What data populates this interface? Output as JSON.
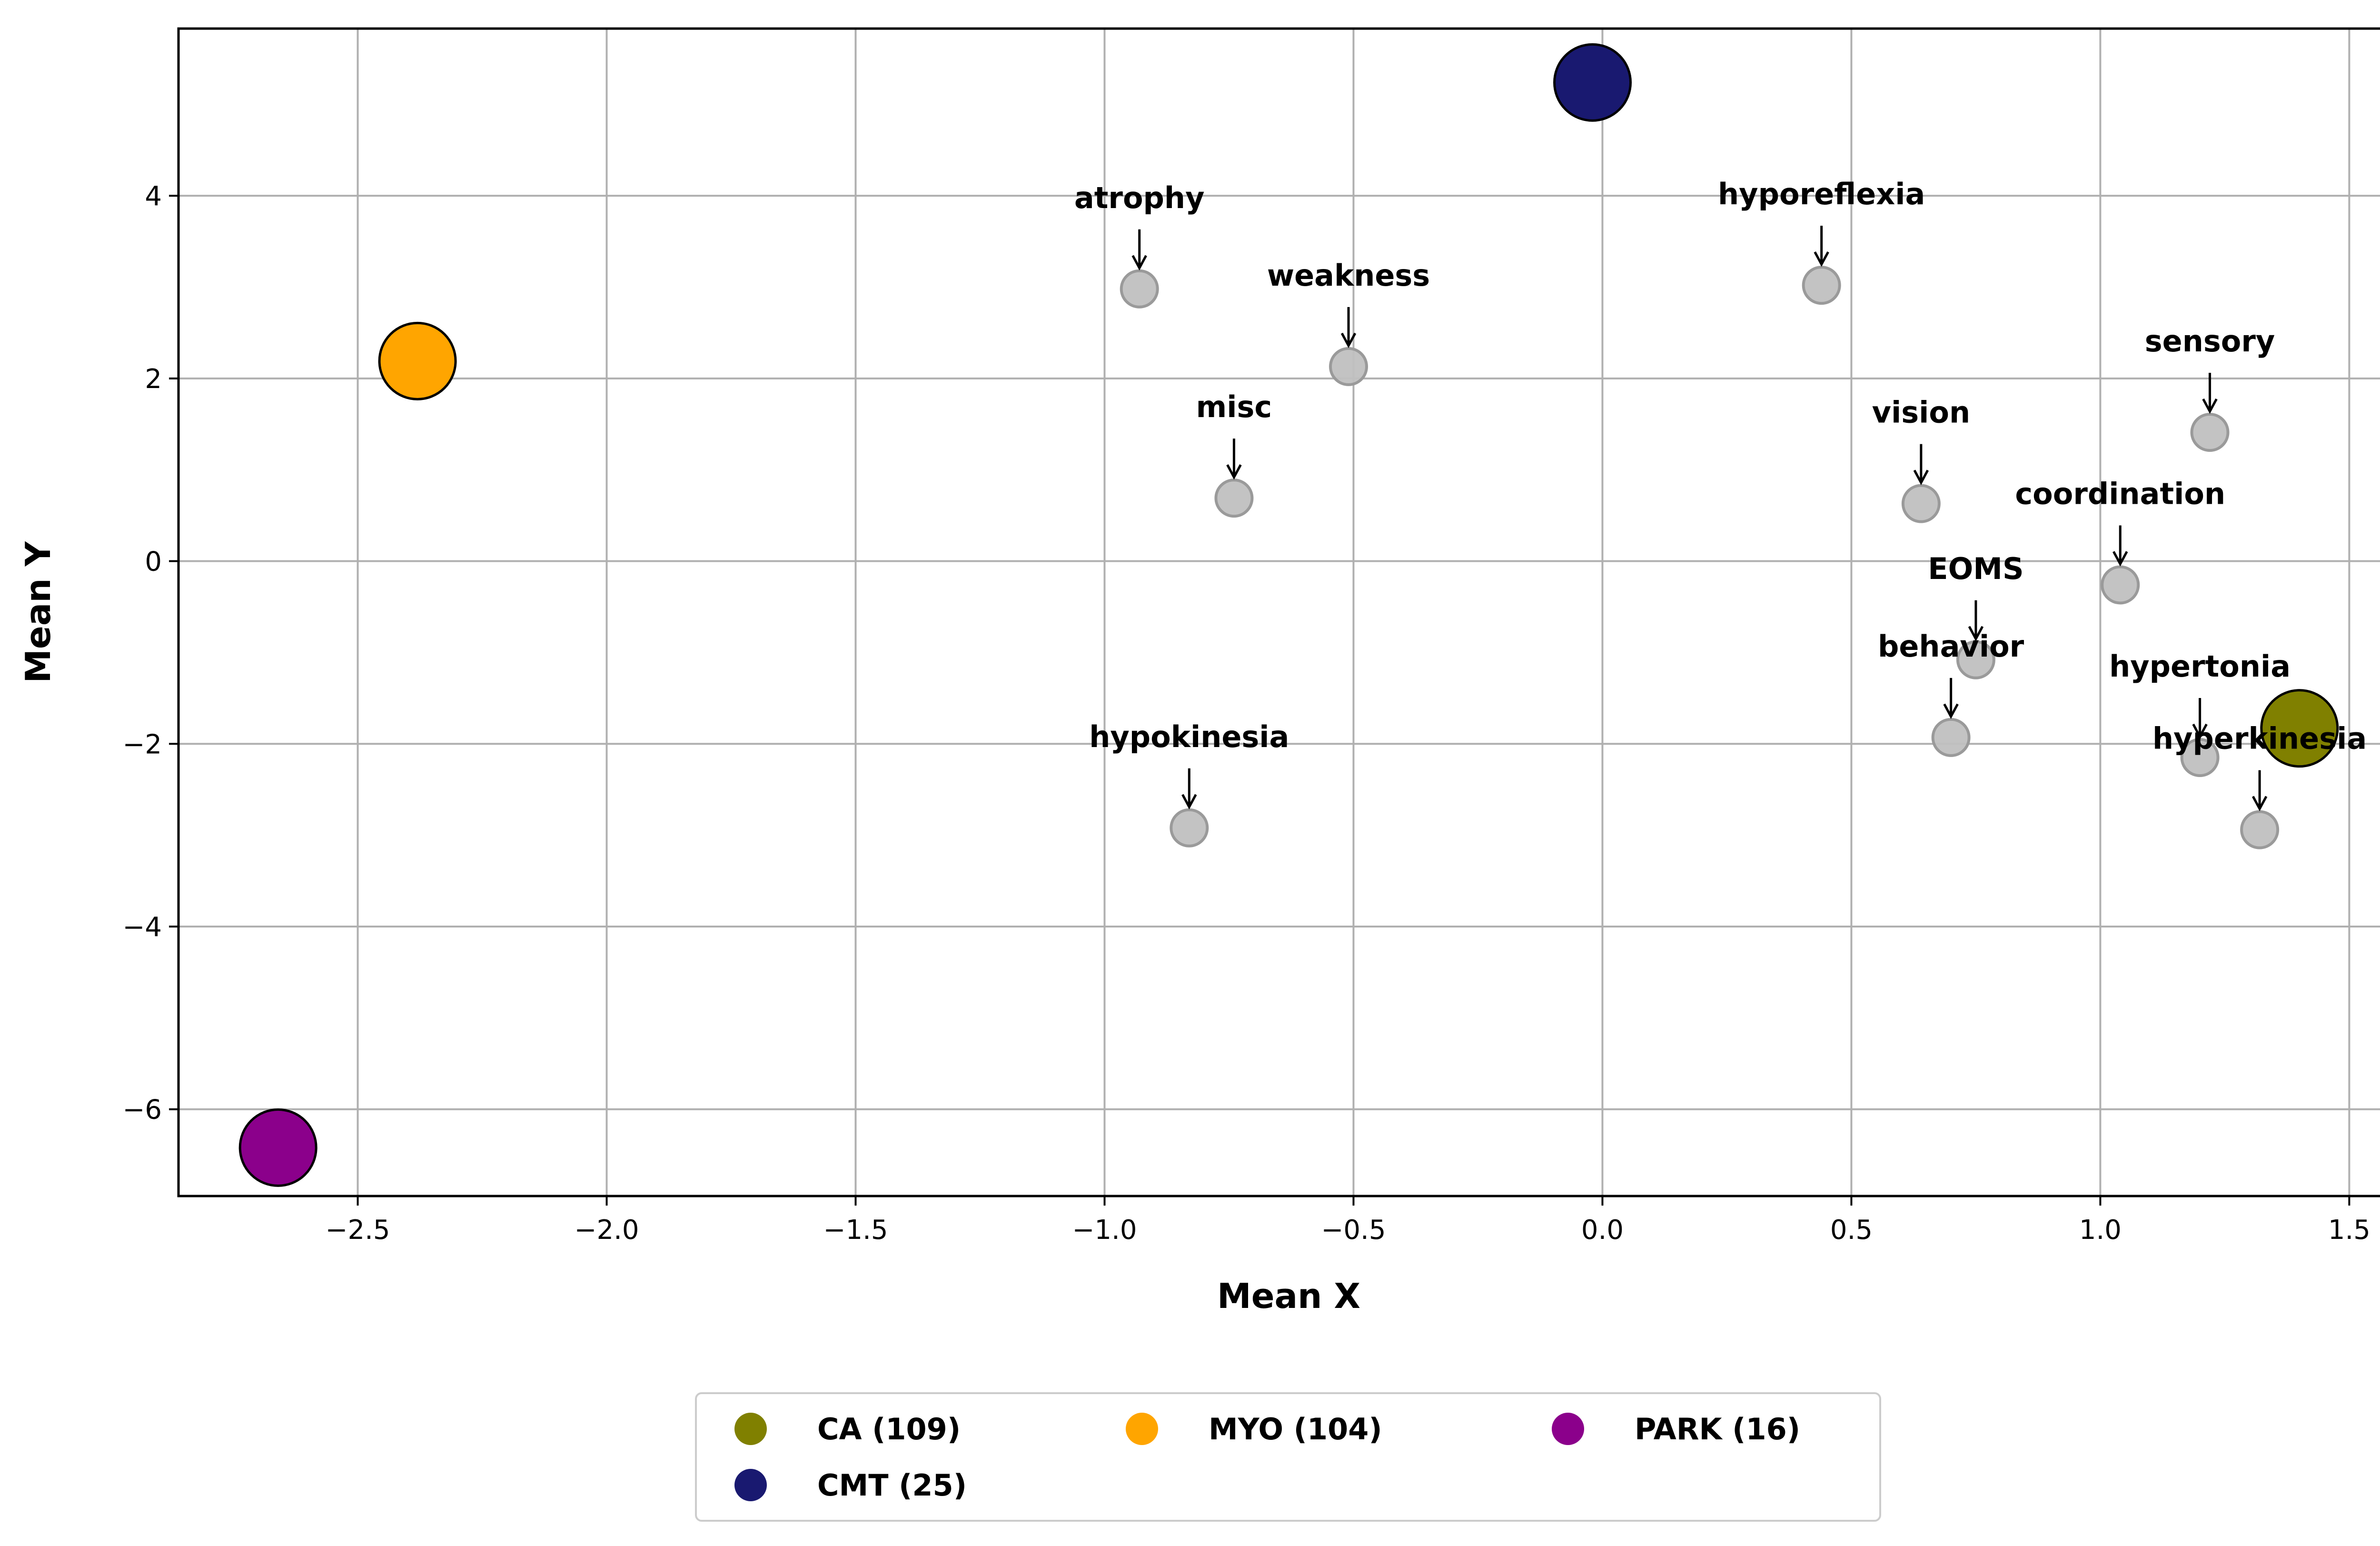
{
  "chart_data": {
    "type": "scatter",
    "xlabel": "Mean X",
    "ylabel": "Mean Y",
    "xlim": [
      -2.86,
      1.6
    ],
    "ylim": [
      -6.95,
      5.83
    ],
    "grid": true,
    "x_ticks": [
      -2.5,
      -2.0,
      -1.5,
      -1.0,
      -0.5,
      0.0,
      0.5,
      1.0,
      1.5
    ],
    "x_tick_labels": [
      "−2.5",
      "−2.0",
      "−1.5",
      "−1.0",
      "−0.5",
      "0.0",
      "0.5",
      "1.0",
      "1.5"
    ],
    "y_ticks": [
      4,
      2,
      0,
      -2,
      -4,
      -6
    ],
    "y_tick_labels": [
      "4",
      "2",
      "0",
      "−2",
      "−4",
      "−6"
    ],
    "symptoms": [
      {
        "label": "atrophy",
        "x": -0.93,
        "y": 2.98
      },
      {
        "label": "weakness",
        "x": -0.51,
        "y": 2.13
      },
      {
        "label": "misc",
        "x": -0.74,
        "y": 0.69
      },
      {
        "label": "hypokinesia",
        "x": -0.83,
        "y": -2.92
      },
      {
        "label": "hyporeflexia",
        "x": 0.44,
        "y": 3.02
      },
      {
        "label": "vision",
        "x": 0.64,
        "y": 0.63
      },
      {
        "label": "EOMS",
        "x": 0.75,
        "y": -1.08
      },
      {
        "label": "behavior",
        "x": 0.7,
        "y": -1.93
      },
      {
        "label": "sensory",
        "x": 1.22,
        "y": 1.41
      },
      {
        "label": "coordination",
        "x": 1.04,
        "y": -0.26
      },
      {
        "label": "hypertonia",
        "x": 1.2,
        "y": -2.15
      },
      {
        "label": "hyperkinesia",
        "x": 1.32,
        "y": -2.94
      }
    ],
    "groups": [
      {
        "name": "CA (109)",
        "x": 1.4,
        "y": -1.83,
        "color": "#808000"
      },
      {
        "name": "CMT (25)",
        "x": -0.02,
        "y": 5.24,
        "color": "#191970"
      },
      {
        "name": "MYO (104)",
        "x": -2.38,
        "y": 2.19,
        "color": "#FFA500"
      },
      {
        "name": "PARK (16)",
        "x": -2.66,
        "y": -6.42,
        "color": "#8B008B"
      }
    ],
    "symptom_color": "#c0c0c0",
    "legend_position": "bottom-center",
    "legend_order": [
      "CA (109)",
      "CMT (25)",
      "MYO (104)",
      "PARK (16)"
    ]
  }
}
